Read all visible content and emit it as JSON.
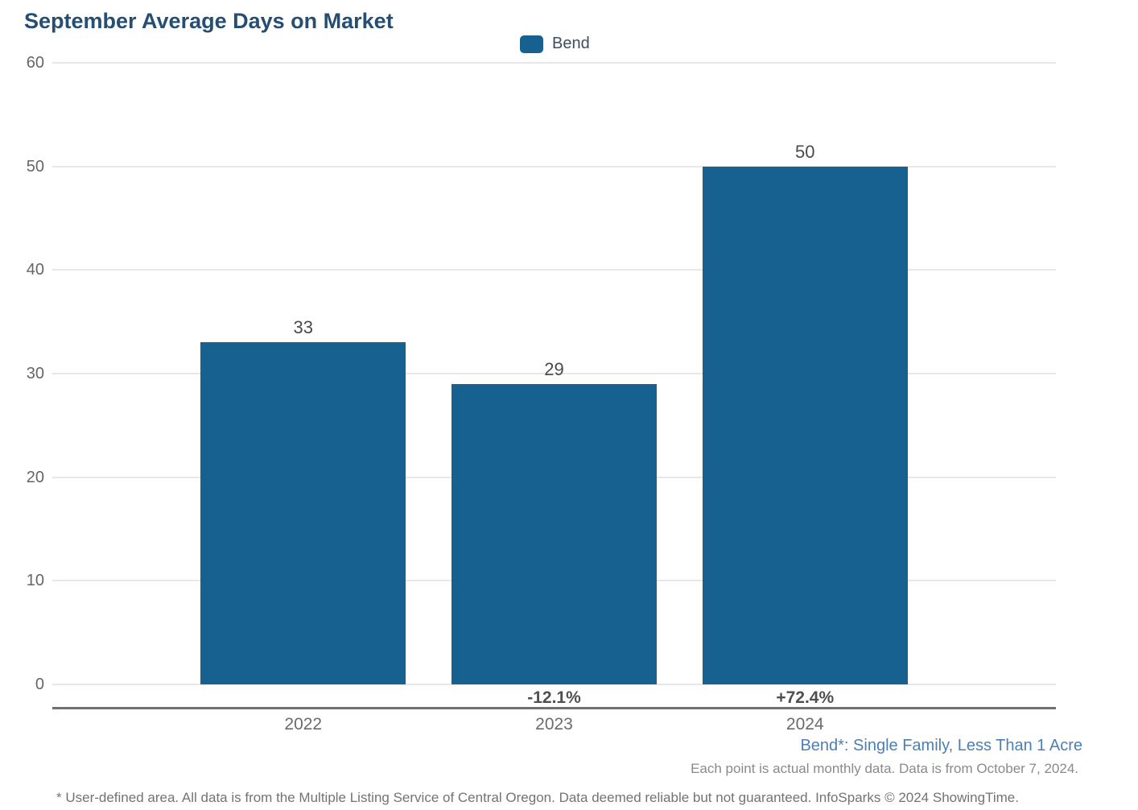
{
  "chart_data": {
    "type": "bar",
    "title": "September Average Days on Market",
    "categories": [
      "2022",
      "2023",
      "2024"
    ],
    "series": [
      {
        "name": "Bend",
        "color": "#16618F",
        "values": [
          33,
          29,
          50
        ]
      }
    ],
    "value_labels": [
      "33",
      "29",
      "50"
    ],
    "pct_change_labels": [
      "",
      "-12.1%",
      "+72.4%"
    ],
    "xlabel": "",
    "ylabel": "",
    "ylim": [
      0,
      60
    ],
    "yticks": [
      0,
      10,
      20,
      30,
      40,
      50,
      60
    ],
    "grid": "horizontal",
    "legend_position": "top-center"
  },
  "legend": {
    "label": "Bend",
    "color": "#16618F"
  },
  "footnotes": {
    "series_definition": "Bend*: Single Family, Less Than 1 Acre",
    "data_note": "Each point is actual monthly data. Data is from October 7, 2024.",
    "disclaimer": "* User-defined area. All data is from the Multiple Listing Service of Central Oregon. Data deemed reliable but not guaranteed. InfoSparks © 2024 ShowingTime."
  },
  "colors": {
    "bar": "#16618F",
    "title": "#254E72",
    "grid": "#E7E7E7",
    "axis_line": "#707070",
    "tick_label": "#666666",
    "value_label": "#4A4A4A",
    "pct_label": "#4F4F4F",
    "footnote_blue": "#4C7FB5",
    "footnote_gray": "#8A8A8A",
    "disclaimer_gray": "#737373"
  }
}
